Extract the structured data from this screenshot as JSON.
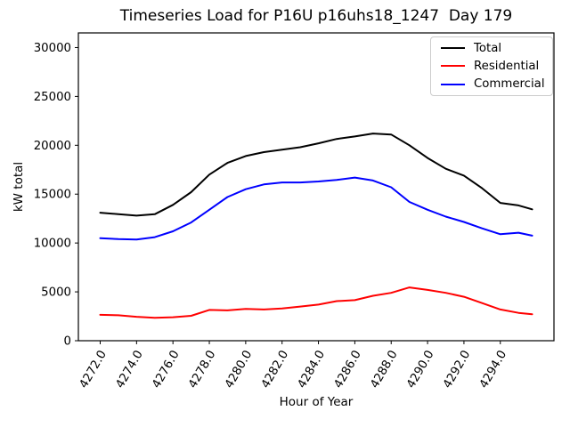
{
  "window": {
    "title": "Timeseries Load for P16U p16uhs18_1247  Day 179"
  },
  "chart_data": {
    "type": "line",
    "title": "Timeseries Load for P16U p16uhs18_1247  Day 179",
    "xlabel": "Hour of Year",
    "ylabel": "kW total",
    "grid": false,
    "legend_position": "upper right",
    "xlim": [
      4270.8,
      4296.95
    ],
    "ylim": [
      0,
      31500
    ],
    "xtick_values": [
      4272,
      4274,
      4276,
      4278,
      4280,
      4282,
      4284,
      4286,
      4288,
      4290,
      4292,
      4294
    ],
    "xtick_labels": [
      "4272.0",
      "4274.0",
      "4276.0",
      "4278.0",
      "4280.0",
      "4282.0",
      "4284.0",
      "4286.0",
      "4288.0",
      "4290.0",
      "4292.0",
      "4294.0"
    ],
    "xtick_rotation": 60,
    "ytick_values": [
      0,
      5000,
      10000,
      15000,
      20000,
      25000,
      30000
    ],
    "ytick_labels": [
      "0",
      "5000",
      "10000",
      "15000",
      "20000",
      "25000",
      "30000"
    ],
    "x": [
      4272,
      4273,
      4274,
      4275,
      4276,
      4277,
      4278,
      4279,
      4280,
      4281,
      4282,
      4283,
      4284,
      4285,
      4286,
      4287,
      4288,
      4289,
      4290,
      4291,
      4292,
      4293,
      4294,
      4295,
      4295.75
    ],
    "series": [
      {
        "name": "Total",
        "color": "#000000",
        "values": [
          13100,
          12950,
          12800,
          12950,
          13900,
          15200,
          17000,
          18200,
          18900,
          19300,
          19550,
          19800,
          20200,
          20650,
          20900,
          21200,
          21100,
          20000,
          18700,
          17600,
          16900,
          15600,
          14100,
          13850,
          13450
        ]
      },
      {
        "name": "Residential",
        "color": "#ff0000",
        "values": [
          2650,
          2600,
          2450,
          2350,
          2400,
          2550,
          3150,
          3100,
          3250,
          3200,
          3300,
          3500,
          3700,
          4050,
          4150,
          4600,
          4900,
          5450,
          5200,
          4900,
          4500,
          3850,
          3200,
          2850,
          2700
        ]
      },
      {
        "name": "Commercial",
        "color": "#0000ff",
        "values": [
          10500,
          10400,
          10350,
          10600,
          11200,
          12100,
          13400,
          14700,
          15500,
          16000,
          16200,
          16200,
          16300,
          16450,
          16700,
          16400,
          15700,
          14200,
          13400,
          12700,
          12150,
          11500,
          10900,
          11050,
          10750
        ]
      }
    ]
  }
}
